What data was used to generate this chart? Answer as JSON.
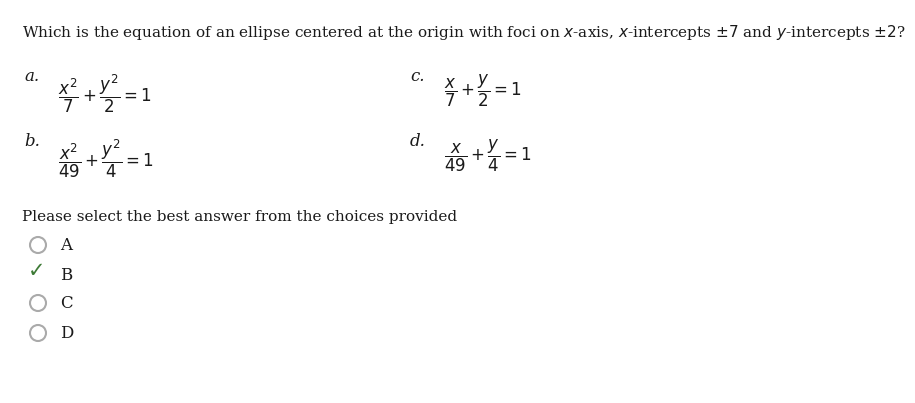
{
  "question": "Which is the equation of an ellipse centered at the origin with foci on $x$-axis, $x$-intercepts $\\pm7$ and $y$-intercepts $\\pm2$?",
  "options": [
    {
      "label": "a.",
      "eq": "$\\dfrac{x^2}{7}+\\dfrac{y^2}{2}=1$"
    },
    {
      "label": "b.",
      "eq": "$\\dfrac{x^2}{49}+\\dfrac{y^2}{4}=1$"
    },
    {
      "label": "c.",
      "eq": "$\\dfrac{x}{7}+\\dfrac{y}{2}=1$"
    },
    {
      "label": "d.",
      "eq": "$\\dfrac{x}{49}+\\dfrac{y}{4}=1$"
    }
  ],
  "prompt": "Please select the best answer from the choices provided",
  "choices": [
    "A",
    "B",
    "C",
    "D"
  ],
  "correct_index": 1,
  "bg_color": "#ffffff",
  "text_color": "#1a1a1a",
  "check_color": "#3d7a35",
  "circle_color": "#aaaaaa",
  "q_fontsize": 11,
  "eq_fontsize": 12,
  "label_fontsize": 12,
  "prompt_fontsize": 11,
  "choice_fontsize": 12
}
